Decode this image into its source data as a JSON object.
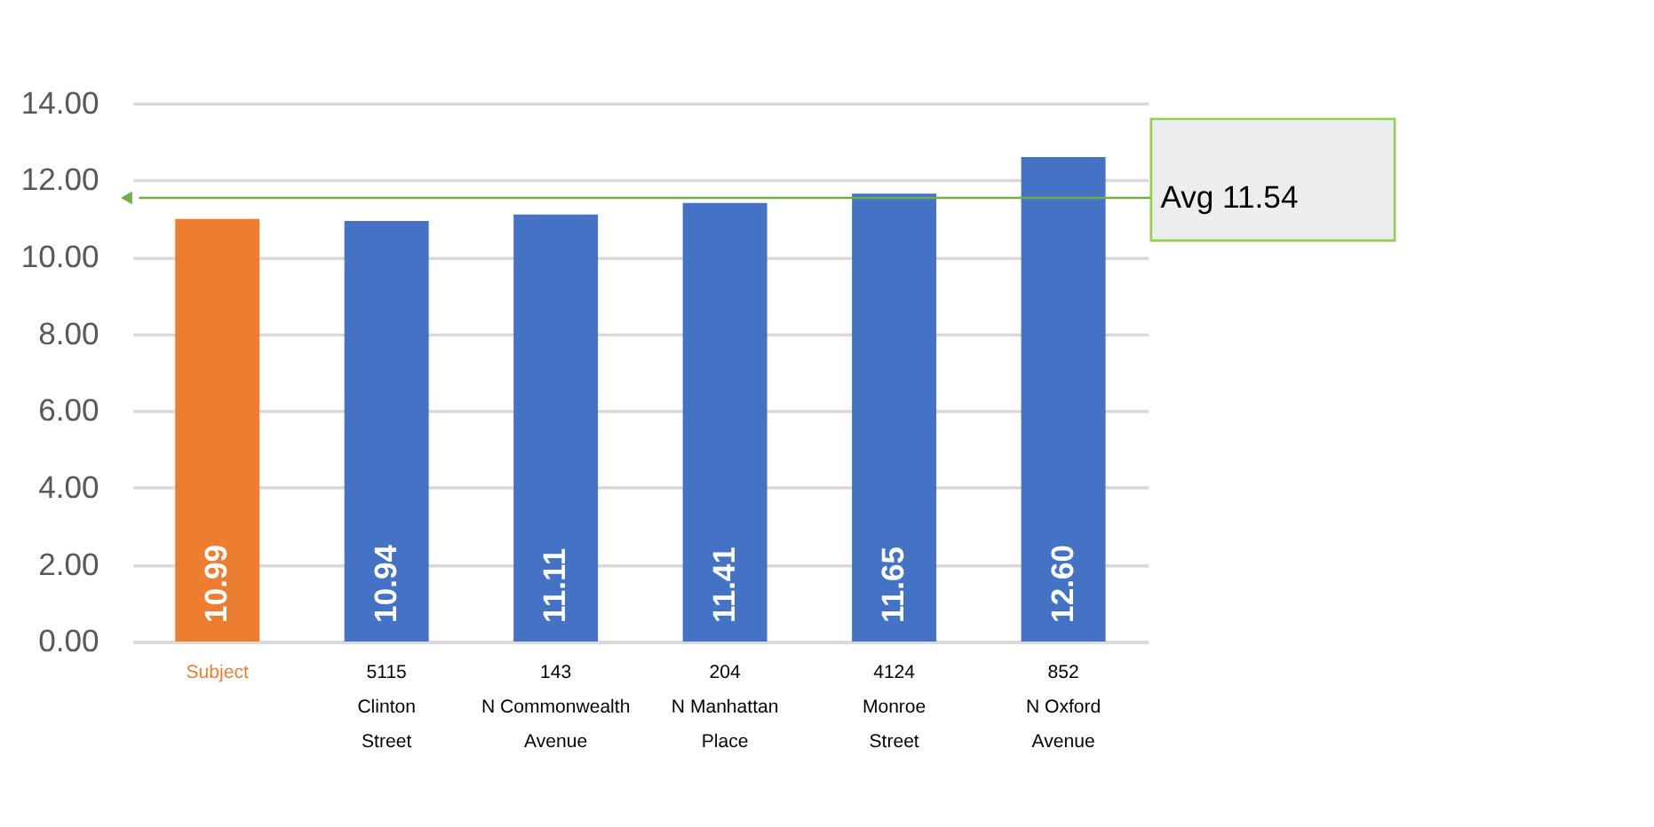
{
  "chart_data": {
    "type": "bar",
    "categories": [
      "Subject",
      "5115\nClinton\nStreet",
      "143\nN Commonwealth\nAvenue",
      "204\nN Manhattan\nPlace",
      "4124\nMonroe\nStreet",
      "852\nN Oxford\nAvenue"
    ],
    "values": [
      10.99,
      10.94,
      11.11,
      11.41,
      11.65,
      12.6
    ],
    "colors": [
      "#ed7d31",
      "#4472c4",
      "#4472c4",
      "#4472c4",
      "#4472c4",
      "#4472c4"
    ],
    "ylim": [
      0,
      14
    ],
    "yticks": [
      {
        "value": 0,
        "label": "0.00"
      },
      {
        "value": 2,
        "label": "2.00"
      },
      {
        "value": 4,
        "label": "4.00"
      },
      {
        "value": 6,
        "label": "6.00"
      },
      {
        "value": 8,
        "label": "8.00"
      },
      {
        "value": 10,
        "label": "10.00"
      },
      {
        "value": 12,
        "label": "12.00"
      },
      {
        "value": 14,
        "label": "14.00"
      }
    ],
    "grid": "y",
    "value_labels": [
      "10.99",
      "10.94",
      "11.11",
      "11.41",
      "11.65",
      "12.60"
    ],
    "ref_lines": [
      {
        "axis": "y",
        "value": 11.54,
        "label": "Avg 11.54",
        "color": "#70ad47"
      }
    ]
  }
}
